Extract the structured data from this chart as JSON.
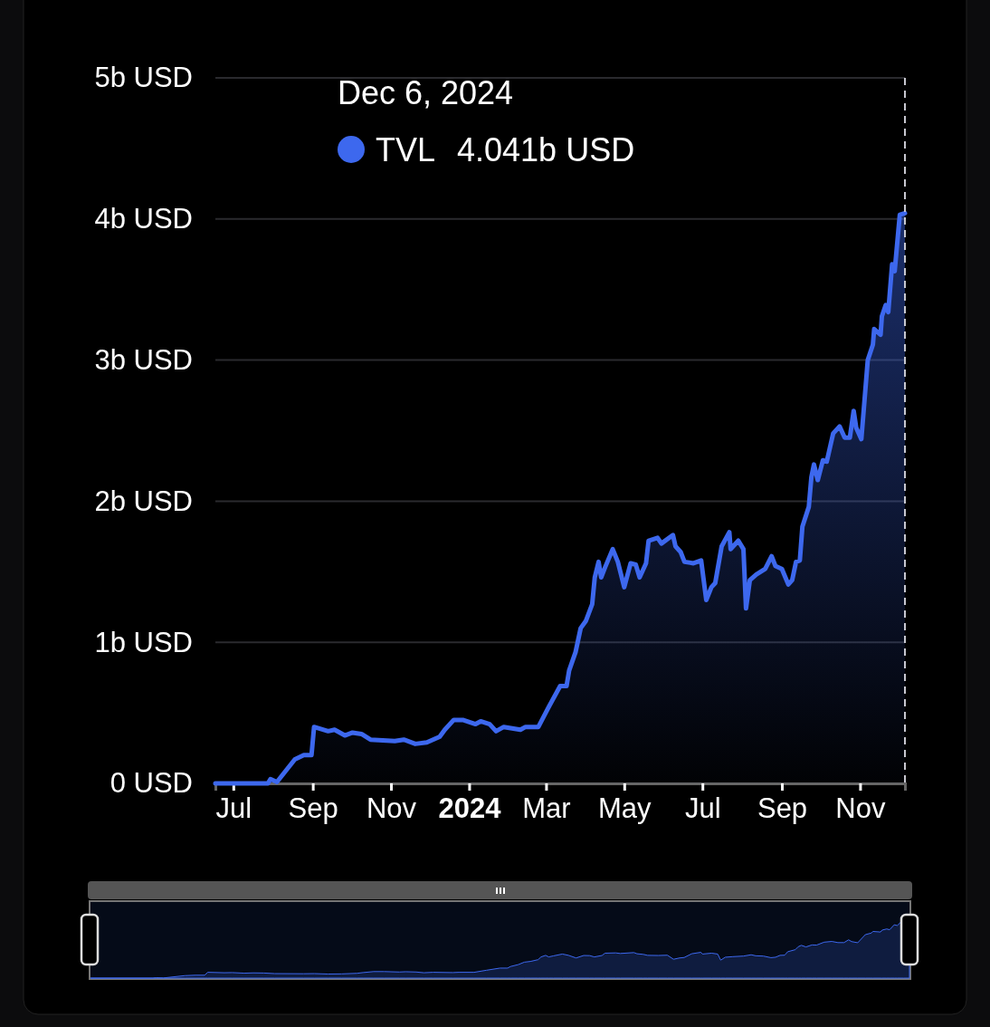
{
  "chart_data": {
    "type": "area",
    "x": [
      "2023-06-17",
      "2023-07-28",
      "2023-07-30",
      "2023-08-04",
      "2023-08-18",
      "2023-08-25",
      "2023-08-31",
      "2023-09-02",
      "2023-09-13",
      "2023-09-18",
      "2023-09-26",
      "2023-10-02",
      "2023-10-09",
      "2023-10-16",
      "2023-11-04",
      "2023-11-11",
      "2023-11-20",
      "2023-11-29",
      "2023-12-09",
      "2023-12-13",
      "2023-12-20",
      "2023-12-27",
      "2024-01-06",
      "2024-01-10",
      "2024-01-17",
      "2024-01-22",
      "2024-01-28",
      "2024-02-10",
      "2024-02-14",
      "2024-02-24",
      "2024-03-03",
      "2024-03-12",
      "2024-03-17",
      "2024-03-19",
      "2024-03-24",
      "2024-03-28",
      "2024-04-01",
      "2024-04-06",
      "2024-04-08",
      "2024-04-11",
      "2024-04-13",
      "2024-04-16",
      "2024-04-22",
      "2024-04-26",
      "2024-05-01",
      "2024-05-06",
      "2024-05-10",
      "2024-05-13",
      "2024-05-18",
      "2024-05-20",
      "2024-05-27",
      "2024-05-30",
      "2024-06-08",
      "2024-06-10",
      "2024-06-14",
      "2024-06-17",
      "2024-06-24",
      "2024-06-30",
      "2024-07-04",
      "2024-07-08",
      "2024-07-11",
      "2024-07-16",
      "2024-07-22",
      "2024-07-23",
      "2024-07-29",
      "2024-08-02",
      "2024-08-04",
      "2024-08-07",
      "2024-08-12",
      "2024-08-19",
      "2024-08-24",
      "2024-08-27",
      "2024-09-01",
      "2024-09-06",
      "2024-09-09",
      "2024-09-12",
      "2024-09-15",
      "2024-09-17",
      "2024-09-22",
      "2024-09-24",
      "2024-09-26",
      "2024-09-29",
      "2024-10-03",
      "2024-10-06",
      "2024-10-11",
      "2024-10-16",
      "2024-10-20",
      "2024-10-24",
      "2024-10-27",
      "2024-10-29",
      "2024-11-02",
      "2024-11-07",
      "2024-11-11",
      "2024-11-12",
      "2024-11-17",
      "2024-11-18",
      "2024-11-21",
      "2024-11-23",
      "2024-11-26",
      "2024-11-28",
      "2024-12-02",
      "2024-12-06"
    ],
    "series": [
      {
        "name": "TVL",
        "color": "#3d68ee",
        "values": [
          0,
          0,
          0.03,
          0.01,
          0.17,
          0.2,
          0.2,
          0.4,
          0.37,
          0.38,
          0.34,
          0.36,
          0.35,
          0.31,
          0.3,
          0.31,
          0.28,
          0.29,
          0.33,
          0.38,
          0.45,
          0.45,
          0.42,
          0.44,
          0.42,
          0.37,
          0.4,
          0.38,
          0.4,
          0.4,
          0.54,
          0.69,
          0.69,
          0.8,
          0.93,
          1.1,
          1.15,
          1.27,
          1.46,
          1.57,
          1.46,
          1.53,
          1.66,
          1.57,
          1.39,
          1.56,
          1.55,
          1.46,
          1.56,
          1.72,
          1.74,
          1.7,
          1.76,
          1.68,
          1.64,
          1.57,
          1.56,
          1.58,
          1.3,
          1.39,
          1.42,
          1.68,
          1.78,
          1.66,
          1.72,
          1.66,
          1.24,
          1.44,
          1.48,
          1.52,
          1.61,
          1.54,
          1.52,
          1.41,
          1.44,
          1.57,
          1.58,
          1.82,
          1.96,
          2.17,
          2.26,
          2.15,
          2.29,
          2.28,
          2.48,
          2.53,
          2.45,
          2.45,
          2.64,
          2.52,
          2.44,
          3.0,
          3.11,
          3.22,
          3.18,
          3.31,
          3.39,
          3.34,
          3.68,
          3.63,
          4.03,
          4.041
        ]
      }
    ],
    "xlim": [
      "2023-06-17",
      "2024-12-06"
    ],
    "xticks": [
      {
        "value": "2023-07-01",
        "label": "Jul"
      },
      {
        "value": "2023-09-01",
        "label": "Sep"
      },
      {
        "value": "2023-11-01",
        "label": "Nov"
      },
      {
        "value": "2024-01-01",
        "label": "2024"
      },
      {
        "value": "2024-03-01",
        "label": "Mar"
      },
      {
        "value": "2024-05-01",
        "label": "May"
      },
      {
        "value": "2024-07-01",
        "label": "Jul"
      },
      {
        "value": "2024-09-01",
        "label": "Sep"
      },
      {
        "value": "2024-11-01",
        "label": "Nov"
      }
    ],
    "ylim": [
      0,
      5
    ],
    "yticks": [
      {
        "value": 0,
        "label": "0 USD"
      },
      {
        "value": 1,
        "label": "1b USD"
      },
      {
        "value": 2,
        "label": "2b USD"
      },
      {
        "value": 3,
        "label": "3b USD"
      },
      {
        "value": 4,
        "label": "4b USD"
      },
      {
        "value": 5,
        "label": "5b USD"
      }
    ],
    "grid": "y",
    "legend": "top",
    "ref_lines": [
      {
        "axis": "x",
        "value": "2024-12-06",
        "color": "#c8c8d0",
        "line_style": "dashed"
      }
    ],
    "annotations": [
      "Dec 6, 2024",
      "4.041b USD"
    ]
  }
}
